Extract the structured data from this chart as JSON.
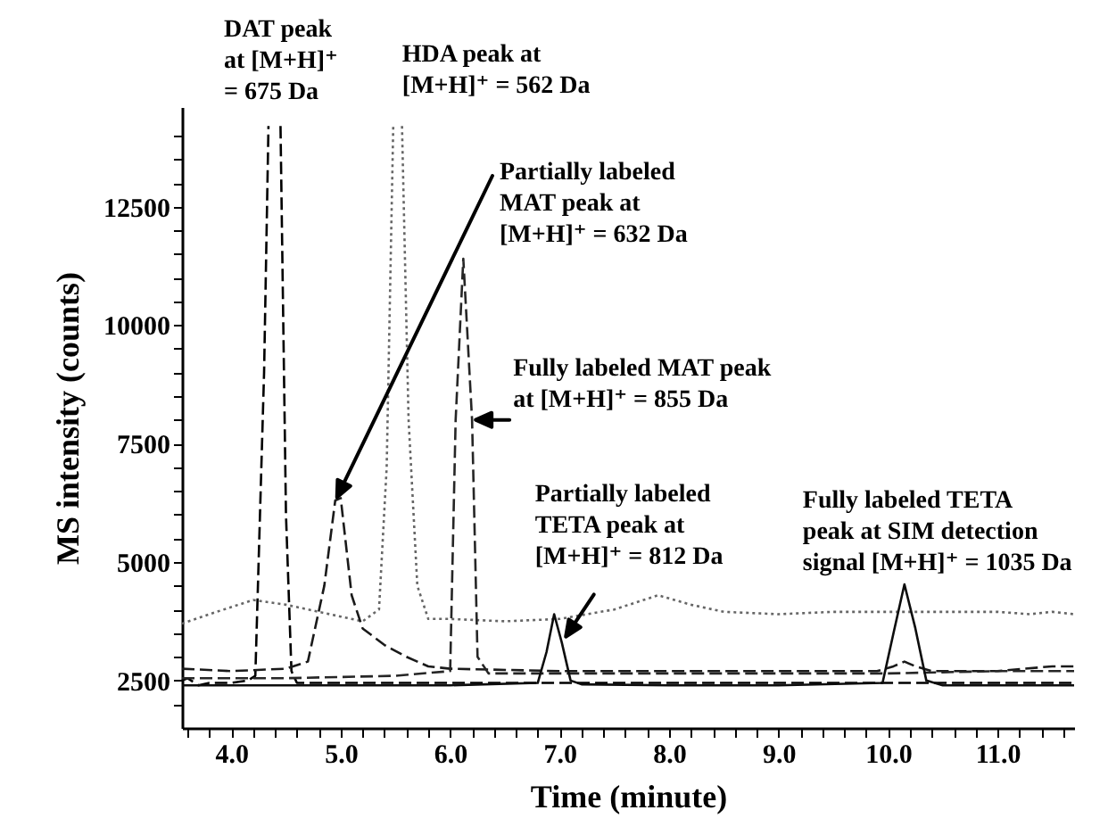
{
  "chart_data": {
    "type": "line",
    "xlabel": "Time (minute)",
    "ylabel": "MS intensity (counts)",
    "xlim": [
      3.55,
      11.7
    ],
    "ylim": [
      1500,
      14600
    ],
    "xticks": [
      {
        "value": 3.6,
        "label": null
      },
      {
        "value": 3.8,
        "label": null
      },
      {
        "value": 4,
        "label": "4.0"
      },
      {
        "value": 4.2,
        "label": null
      },
      {
        "value": 4.4,
        "label": null
      },
      {
        "value": 4.6,
        "label": null
      },
      {
        "value": 4.8,
        "label": null
      },
      {
        "value": 5,
        "label": "5.0"
      },
      {
        "value": 5.2,
        "label": null
      },
      {
        "value": 5.4,
        "label": null
      },
      {
        "value": 5.6,
        "label": null
      },
      {
        "value": 5.8,
        "label": null
      },
      {
        "value": 6,
        "label": "6.0"
      },
      {
        "value": 6.2,
        "label": null
      },
      {
        "value": 6.4,
        "label": null
      },
      {
        "value": 6.6,
        "label": null
      },
      {
        "value": 6.8,
        "label": null
      },
      {
        "value": 7,
        "label": "7.0"
      },
      {
        "value": 7.2,
        "label": null
      },
      {
        "value": 7.4,
        "label": null
      },
      {
        "value": 7.6,
        "label": null
      },
      {
        "value": 7.8,
        "label": null
      },
      {
        "value": 8,
        "label": "8.0"
      },
      {
        "value": 8.2,
        "label": null
      },
      {
        "value": 8.4,
        "label": null
      },
      {
        "value": 8.6,
        "label": null
      },
      {
        "value": 8.8,
        "label": null
      },
      {
        "value": 9,
        "label": "9.0"
      },
      {
        "value": 9.2,
        "label": null
      },
      {
        "value": 9.4,
        "label": null
      },
      {
        "value": 9.6,
        "label": null
      },
      {
        "value": 9.8,
        "label": null
      },
      {
        "value": 10,
        "label": "10.0"
      },
      {
        "value": 10.2,
        "label": null
      },
      {
        "value": 10.4,
        "label": null
      },
      {
        "value": 10.6,
        "label": null
      },
      {
        "value": 10.8,
        "label": null
      },
      {
        "value": 11,
        "label": "11.0"
      },
      {
        "value": 11.2,
        "label": null
      },
      {
        "value": 11.4,
        "label": null
      },
      {
        "value": 11.6,
        "label": null
      }
    ],
    "yticks": [
      {
        "value": 2000,
        "label": null
      },
      2500,
      {
        "value": 3000,
        "label": null
      },
      {
        "value": 3500,
        "label": null
      },
      {
        "value": 4000,
        "label": null
      },
      {
        "value": 4500,
        "label": null
      },
      5000,
      {
        "value": 5500,
        "label": null
      },
      {
        "value": 6000,
        "label": null
      },
      {
        "value": 6500,
        "label": null
      },
      {
        "value": 7000,
        "label": null
      },
      7500,
      {
        "value": 8000,
        "label": null
      },
      {
        "value": 8500,
        "label": null
      },
      {
        "value": 9000,
        "label": null
      },
      {
        "value": 9500,
        "label": null
      },
      10000,
      {
        "value": 10500,
        "label": null
      },
      {
        "value": 11000,
        "label": null
      },
      {
        "value": 11500,
        "label": null
      },
      {
        "value": 12000,
        "label": null
      },
      12500,
      {
        "value": 13000,
        "label": null
      },
      {
        "value": 13500,
        "label": null
      },
      {
        "value": 14000,
        "label": null
      }
    ],
    "series": [
      {
        "color": "#000000",
        "line_style": "dashed",
        "x": [
          3.55,
          3.6,
          3.7,
          3.8,
          4.0,
          4.15,
          4.22,
          4.3,
          4.34,
          4.4,
          4.45,
          4.5,
          4.55,
          4.6,
          5.0,
          6.0,
          7.0,
          8.0,
          9.0,
          10.0,
          11.0,
          11.7
        ],
        "values": [
          2500,
          2550,
          2400,
          2450,
          2450,
          2500,
          2600,
          9000,
          14200,
          null,
          14200,
          6000,
          2700,
          2450,
          2450,
          2450,
          2450,
          2450,
          2450,
          2450,
          2450,
          2450
        ]
      },
      {
        "color": "#666666",
        "line_style": "dotted",
        "x": [
          3.55,
          3.8,
          4.0,
          4.2,
          4.5,
          4.8,
          5.0,
          5.2,
          5.35,
          5.42,
          5.48,
          5.52,
          5.56,
          5.62,
          5.7,
          5.8,
          6.0,
          6.5,
          7.0,
          7.5,
          7.9,
          8.2,
          8.5,
          9.0,
          9.5,
          10.0,
          10.5,
          11.0,
          11.3,
          11.5,
          11.7
        ],
        "values": [
          3700,
          3900,
          4050,
          4200,
          4100,
          3950,
          3850,
          3750,
          4000,
          7000,
          14200,
          null,
          14200,
          8000,
          4500,
          3800,
          3800,
          3750,
          3800,
          4000,
          4300,
          4100,
          3950,
          3900,
          3950,
          3950,
          3950,
          3950,
          3900,
          3950,
          3900
        ]
      },
      {
        "color": "#1a1a1a",
        "line_style": "dashed",
        "x": [
          3.55,
          4.0,
          4.5,
          4.7,
          4.85,
          4.95,
          5.0,
          5.1,
          5.2,
          5.4,
          5.6,
          5.8,
          6.0,
          7.0,
          8.0,
          9.0,
          9.9,
          10.05,
          10.15,
          10.25,
          10.4,
          11.0,
          11.5,
          11.7
        ],
        "values": [
          2750,
          2700,
          2750,
          2900,
          4500,
          6300,
          6350,
          4300,
          3600,
          3250,
          3000,
          2800,
          2750,
          2700,
          2700,
          2700,
          2700,
          2800,
          2900,
          2800,
          2700,
          2700,
          2800,
          2800
        ]
      },
      {
        "color": "#262626",
        "line_style": "dashed",
        "x": [
          3.55,
          4.5,
          5.5,
          6.0,
          6.05,
          6.12,
          6.2,
          6.25,
          6.35,
          7.0,
          8.0,
          9.0,
          10.0,
          11.0,
          11.7
        ],
        "values": [
          2550,
          2550,
          2600,
          2700,
          8000,
          11400,
          8000,
          3000,
          2650,
          2650,
          2650,
          2650,
          2650,
          2700,
          2700
        ]
      },
      {
        "color": "#0d0d0d",
        "line_style": "solid",
        "x": [
          3.55,
          5.0,
          6.0,
          6.8,
          6.88,
          6.95,
          7.02,
          7.1,
          7.2,
          8.0,
          9.0,
          9.95,
          10.05,
          10.15,
          10.25,
          10.35,
          10.5,
          11.0,
          11.7
        ],
        "values": [
          2400,
          2400,
          2400,
          2450,
          3100,
          3900,
          3300,
          2500,
          2420,
          2400,
          2400,
          2450,
          3500,
          4530,
          3600,
          2500,
          2400,
          2400,
          2400
        ]
      }
    ],
    "annotations": [
      {
        "text": "DAT peak\nat [M+H]⁺\n= 675 Da",
        "x": 4.34,
        "y": 14200
      },
      {
        "text": "HDA peak at\n[M+H]⁺ = 562 Da",
        "x": 5.48,
        "y": 14200
      },
      "Partially labeled\nMAT peak at\n[M+H]⁺ = 632 Da",
      {
        "text": "Fully labeled MAT peak\nat [M+H]⁺ = 855 Da",
        "x": 6.2,
        "y": 8000
      },
      {
        "text": "Partially labeled\nTETA peak at\n[M+H]⁺ = 812 Da",
        "x": 7.02,
        "y": 3300
      },
      {
        "text": "Fully labeled TETA\npeak at SIM detection\nsignal [M+H]⁺ = 1035 Da",
        "x": 10.15,
        "y": 4530
      }
    ]
  }
}
